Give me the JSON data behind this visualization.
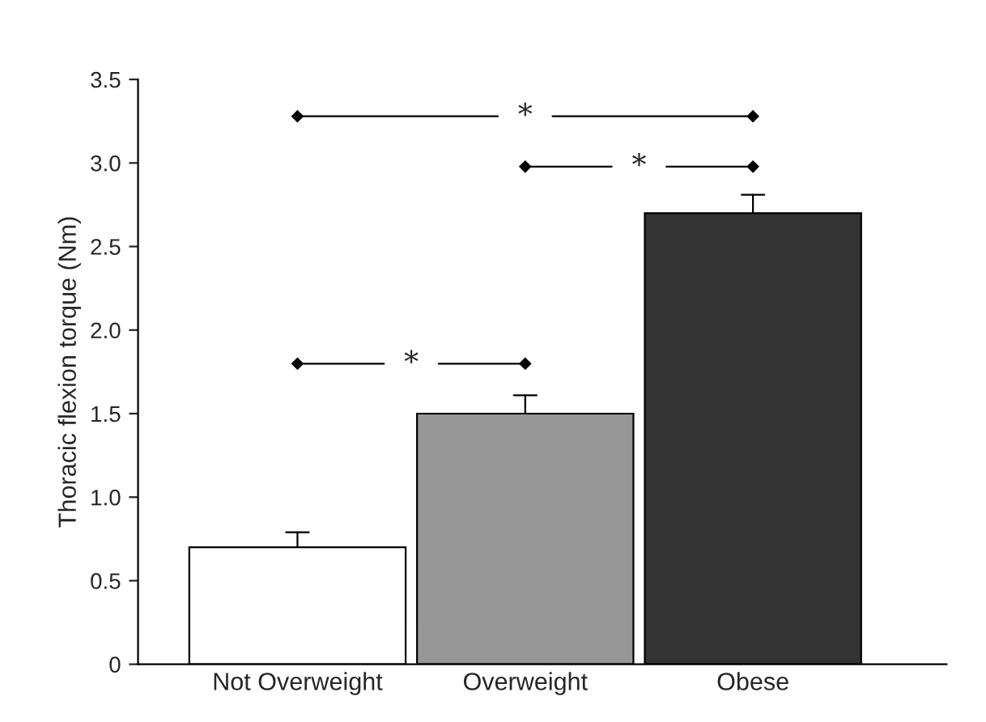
{
  "chart_data": {
    "type": "bar",
    "ylabel": "Thoracic flexion torque (Nm)",
    "categories": [
      "Not Overweight",
      "Overweight",
      "Obese"
    ],
    "values": [
      0.7,
      1.5,
      2.7
    ],
    "colors": [
      "#ffffff",
      "#969696",
      "#333333"
    ],
    "errors": [
      [
        0.7,
        0.79
      ],
      [
        1.5,
        1.61
      ],
      [
        2.7,
        2.81
      ]
    ],
    "ylim": [
      0,
      3.5
    ],
    "yticks": [
      0,
      {
        "value": 0.5,
        "label": "0.5"
      },
      {
        "value": 1,
        "label": "1.0"
      },
      {
        "value": 1.5,
        "label": "1.5"
      },
      {
        "value": 2,
        "label": "2.0"
      },
      {
        "value": 2.5,
        "label": "2.5"
      },
      {
        "value": 3,
        "label": "3.0"
      },
      {
        "value": 3.5,
        "label": "3.5"
      }
    ],
    "annotations": [
      "*",
      "*",
      "*"
    ],
    "grid": false,
    "legend": false
  }
}
